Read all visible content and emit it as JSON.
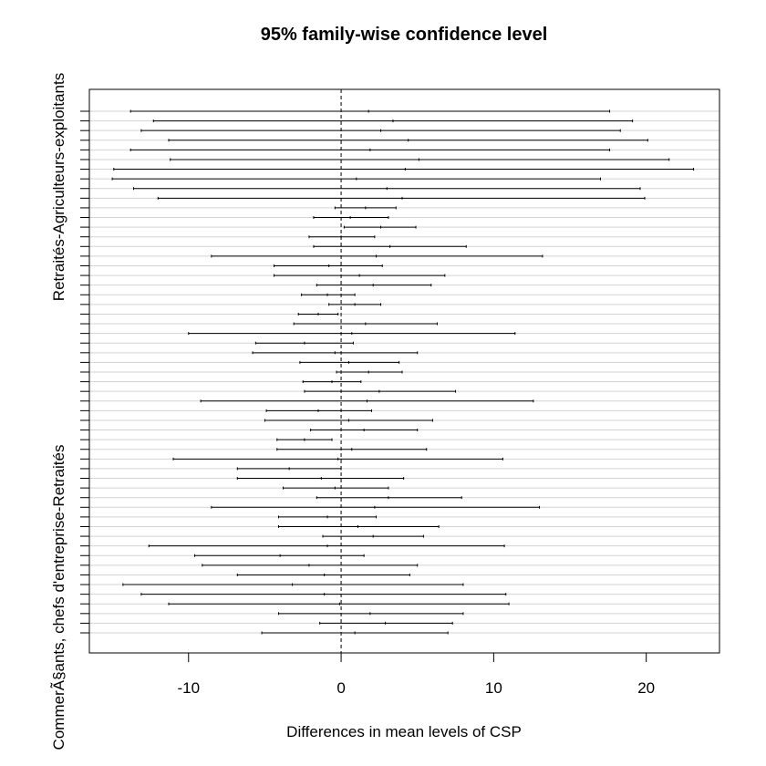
{
  "chart_data": {
    "type": "errorbar",
    "title": "95% family-wise confidence level",
    "xlabel": "Differences in mean levels of CSP",
    "ylabel_top": "Retraités-Agriculteurs-exploitants",
    "ylabel_bottom": "CommerÃ§ants, chefs d'entreprise-Retraités",
    "xlim": [
      -16.5,
      24.8
    ],
    "xticks": [
      -10,
      0,
      10,
      20
    ],
    "xtick_labels": [
      "-10",
      "0",
      "10",
      "20"
    ],
    "reference_line": 0,
    "grid": true,
    "intervals": [
      {
        "lwr": -13.8,
        "diff": 1.8,
        "upr": 17.6
      },
      {
        "lwr": -12.3,
        "diff": 3.4,
        "upr": 19.1
      },
      {
        "lwr": -13.1,
        "diff": 2.6,
        "upr": 18.3
      },
      {
        "lwr": -11.3,
        "diff": 4.4,
        "upr": 20.1
      },
      {
        "lwr": -13.8,
        "diff": 1.9,
        "upr": 17.6
      },
      {
        "lwr": -11.2,
        "diff": 5.1,
        "upr": 21.5
      },
      {
        "lwr": -14.9,
        "diff": 4.2,
        "upr": 23.1
      },
      {
        "lwr": -15.0,
        "diff": 1.0,
        "upr": 17.0
      },
      {
        "lwr": -13.6,
        "diff": 3.0,
        "upr": 19.6
      },
      {
        "lwr": -12.0,
        "diff": 4.0,
        "upr": 19.9
      },
      {
        "lwr": -0.4,
        "diff": 1.6,
        "upr": 3.6
      },
      {
        "lwr": -1.8,
        "diff": 0.6,
        "upr": 3.1
      },
      {
        "lwr": 0.2,
        "diff": 2.6,
        "upr": 4.9
      },
      {
        "lwr": -2.1,
        "diff": 0.0,
        "upr": 2.2
      },
      {
        "lwr": -1.8,
        "diff": 3.2,
        "upr": 8.2
      },
      {
        "lwr": -8.5,
        "diff": 2.3,
        "upr": 13.2
      },
      {
        "lwr": -4.4,
        "diff": -0.8,
        "upr": 2.7
      },
      {
        "lwr": -4.4,
        "diff": 1.2,
        "upr": 6.8
      },
      {
        "lwr": -1.6,
        "diff": 2.1,
        "upr": 5.9
      },
      {
        "lwr": -2.6,
        "diff": -0.9,
        "upr": 0.9
      },
      {
        "lwr": -0.8,
        "diff": 0.9,
        "upr": 2.6
      },
      {
        "lwr": -2.8,
        "diff": -1.5,
        "upr": -0.2
      },
      {
        "lwr": -3.1,
        "diff": 1.6,
        "upr": 6.3
      },
      {
        "lwr": -10.0,
        "diff": 0.7,
        "upr": 11.4
      },
      {
        "lwr": -5.6,
        "diff": -2.4,
        "upr": 0.8
      },
      {
        "lwr": -5.8,
        "diff": -0.4,
        "upr": 5.0
      },
      {
        "lwr": -2.7,
        "diff": 0.5,
        "upr": 3.8
      },
      {
        "lwr": -0.3,
        "diff": 1.8,
        "upr": 4.0
      },
      {
        "lwr": -2.5,
        "diff": -0.6,
        "upr": 1.3
      },
      {
        "lwr": -2.4,
        "diff": 2.5,
        "upr": 7.5
      },
      {
        "lwr": -9.2,
        "diff": 1.7,
        "upr": 12.6
      },
      {
        "lwr": -4.9,
        "diff": -1.5,
        "upr": 2.0
      },
      {
        "lwr": -5.0,
        "diff": 0.5,
        "upr": 6.0
      },
      {
        "lwr": -2.0,
        "diff": 1.5,
        "upr": 5.0
      },
      {
        "lwr": -4.2,
        "diff": -2.4,
        "upr": -0.6
      },
      {
        "lwr": -4.2,
        "diff": 0.7,
        "upr": 5.6
      },
      {
        "lwr": -11.0,
        "diff": -0.2,
        "upr": 10.6
      },
      {
        "lwr": -6.8,
        "diff": -3.4,
        "upr": -0.0
      },
      {
        "lwr": -6.8,
        "diff": -1.3,
        "upr": 4.1
      },
      {
        "lwr": -3.8,
        "diff": -0.4,
        "upr": 3.1
      },
      {
        "lwr": -1.6,
        "diff": 3.1,
        "upr": 7.9
      },
      {
        "lwr": -8.5,
        "diff": 2.2,
        "upr": 13.0
      },
      {
        "lwr": -4.1,
        "diff": -0.9,
        "upr": 2.3
      },
      {
        "lwr": -4.1,
        "diff": 1.1,
        "upr": 6.4
      },
      {
        "lwr": -1.2,
        "diff": 2.1,
        "upr": 5.4
      },
      {
        "lwr": -12.6,
        "diff": -0.9,
        "upr": 10.7
      },
      {
        "lwr": -9.6,
        "diff": -4.0,
        "upr": 1.5
      },
      {
        "lwr": -9.1,
        "diff": -2.1,
        "upr": 5.0
      },
      {
        "lwr": -6.8,
        "diff": -1.1,
        "upr": 4.5
      },
      {
        "lwr": -14.3,
        "diff": -3.2,
        "upr": 8.0
      },
      {
        "lwr": -13.1,
        "diff": -1.1,
        "upr": 10.8
      },
      {
        "lwr": -11.3,
        "diff": -0.1,
        "upr": 11.0
      },
      {
        "lwr": -4.1,
        "diff": 1.9,
        "upr": 8.0
      },
      {
        "lwr": -1.4,
        "diff": 2.9,
        "upr": 7.3
      },
      {
        "lwr": -5.2,
        "diff": 0.9,
        "upr": 7.0
      }
    ]
  }
}
